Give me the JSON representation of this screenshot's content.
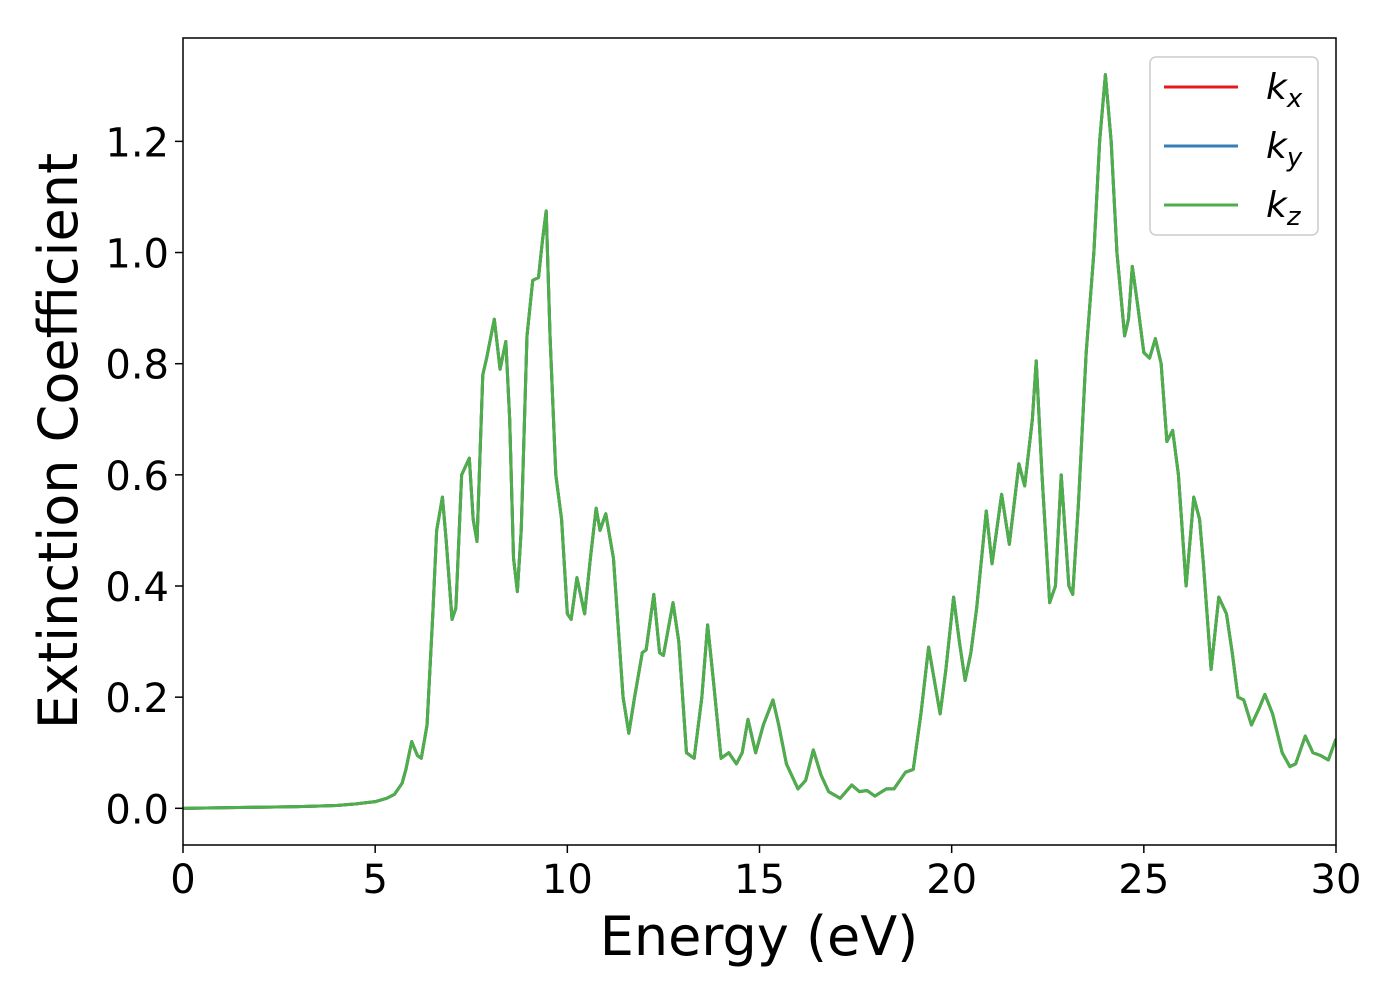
{
  "chart_data": {
    "type": "line",
    "xlabel": "Energy (eV)",
    "ylabel": "Extinction Coefficient",
    "x": [
      0,
      1,
      2,
      3,
      4,
      4.5,
      5,
      5.3,
      5.5,
      5.7,
      5.8,
      5.95,
      6.1,
      6.2,
      6.35,
      6.5,
      6.6,
      6.75,
      6.85,
      7.0,
      7.1,
      7.25,
      7.45,
      7.55,
      7.65,
      7.8,
      7.9,
      8.1,
      8.25,
      8.4,
      8.5,
      8.6,
      8.7,
      8.8,
      8.95,
      9.1,
      9.25,
      9.35,
      9.45,
      9.55,
      9.7,
      9.85,
      10.0,
      10.1,
      10.25,
      10.45,
      10.6,
      10.75,
      10.85,
      11.0,
      11.2,
      11.45,
      11.6,
      11.75,
      11.95,
      12.05,
      12.25,
      12.4,
      12.5,
      12.75,
      12.9,
      13.1,
      13.3,
      13.5,
      13.65,
      13.8,
      14.0,
      14.2,
      14.4,
      14.55,
      14.7,
      14.9,
      15.1,
      15.35,
      15.5,
      15.7,
      16.0,
      16.2,
      16.4,
      16.6,
      16.8,
      17.1,
      17.4,
      17.6,
      17.8,
      18.0,
      18.3,
      18.5,
      18.8,
      19.0,
      19.2,
      19.4,
      19.55,
      19.7,
      19.85,
      20.05,
      20.2,
      20.35,
      20.5,
      20.65,
      20.9,
      21.05,
      21.3,
      21.5,
      21.75,
      21.9,
      22.1,
      22.2,
      22.35,
      22.55,
      22.7,
      22.85,
      23.05,
      23.15,
      23.3,
      23.5,
      23.7,
      23.85,
      24.0,
      24.15,
      24.3,
      24.5,
      24.6,
      24.7,
      24.85,
      25.0,
      25.15,
      25.3,
      25.45,
      25.6,
      25.75,
      25.9,
      26.1,
      26.3,
      26.45,
      26.55,
      26.75,
      26.95,
      27.15,
      27.3,
      27.45,
      27.6,
      27.8,
      28.0,
      28.15,
      28.35,
      28.6,
      28.8,
      28.95,
      29.2,
      29.4,
      29.6,
      29.8,
      30.0
    ],
    "series": [
      {
        "name": "kx",
        "color": "#e41a1c",
        "values": [
          0,
          0.001,
          0.002,
          0.003,
          0.005,
          0.008,
          0.012,
          0.018,
          0.025,
          0.045,
          0.07,
          0.12,
          0.095,
          0.09,
          0.15,
          0.35,
          0.5,
          0.56,
          0.48,
          0.34,
          0.36,
          0.6,
          0.63,
          0.52,
          0.48,
          0.78,
          0.81,
          0.88,
          0.79,
          0.84,
          0.7,
          0.45,
          0.39,
          0.5,
          0.85,
          0.95,
          0.955,
          1.02,
          1.075,
          0.85,
          0.6,
          0.52,
          0.35,
          0.34,
          0.415,
          0.35,
          0.45,
          0.54,
          0.5,
          0.53,
          0.45,
          0.2,
          0.135,
          0.2,
          0.28,
          0.285,
          0.385,
          0.28,
          0.275,
          0.37,
          0.3,
          0.1,
          0.09,
          0.2,
          0.33,
          0.23,
          0.09,
          0.1,
          0.08,
          0.1,
          0.16,
          0.1,
          0.15,
          0.195,
          0.15,
          0.08,
          0.035,
          0.05,
          0.105,
          0.06,
          0.03,
          0.018,
          0.042,
          0.03,
          0.032,
          0.022,
          0.035,
          0.035,
          0.065,
          0.07,
          0.17,
          0.29,
          0.23,
          0.17,
          0.25,
          0.38,
          0.3,
          0.23,
          0.28,
          0.36,
          0.535,
          0.44,
          0.565,
          0.475,
          0.62,
          0.58,
          0.7,
          0.805,
          0.6,
          0.37,
          0.4,
          0.6,
          0.4,
          0.385,
          0.55,
          0.82,
          1.0,
          1.2,
          1.32,
          1.2,
          1.0,
          0.85,
          0.88,
          0.975,
          0.9,
          0.82,
          0.81,
          0.845,
          0.8,
          0.66,
          0.68,
          0.6,
          0.4,
          0.56,
          0.52,
          0.44,
          0.25,
          0.38,
          0.35,
          0.28,
          0.2,
          0.195,
          0.15,
          0.18,
          0.205,
          0.17,
          0.1,
          0.075,
          0.08,
          0.13,
          0.1,
          0.095,
          0.087,
          0.125
        ]
      },
      {
        "name": "ky",
        "color": "#377eb8",
        "values": [
          0,
          0.001,
          0.002,
          0.003,
          0.005,
          0.008,
          0.012,
          0.018,
          0.025,
          0.045,
          0.07,
          0.12,
          0.095,
          0.09,
          0.15,
          0.35,
          0.5,
          0.56,
          0.48,
          0.34,
          0.36,
          0.6,
          0.63,
          0.52,
          0.48,
          0.78,
          0.81,
          0.88,
          0.79,
          0.84,
          0.7,
          0.45,
          0.39,
          0.5,
          0.85,
          0.95,
          0.955,
          1.02,
          1.075,
          0.85,
          0.6,
          0.52,
          0.35,
          0.34,
          0.415,
          0.35,
          0.45,
          0.54,
          0.5,
          0.53,
          0.45,
          0.2,
          0.135,
          0.2,
          0.28,
          0.285,
          0.385,
          0.28,
          0.275,
          0.37,
          0.3,
          0.1,
          0.09,
          0.2,
          0.33,
          0.23,
          0.09,
          0.1,
          0.08,
          0.1,
          0.16,
          0.1,
          0.15,
          0.195,
          0.15,
          0.08,
          0.035,
          0.05,
          0.105,
          0.06,
          0.03,
          0.018,
          0.042,
          0.03,
          0.032,
          0.022,
          0.035,
          0.035,
          0.065,
          0.07,
          0.17,
          0.29,
          0.23,
          0.17,
          0.25,
          0.38,
          0.3,
          0.23,
          0.28,
          0.36,
          0.535,
          0.44,
          0.565,
          0.475,
          0.62,
          0.58,
          0.7,
          0.805,
          0.6,
          0.37,
          0.4,
          0.6,
          0.4,
          0.385,
          0.55,
          0.82,
          1.0,
          1.2,
          1.32,
          1.2,
          1.0,
          0.85,
          0.88,
          0.975,
          0.9,
          0.82,
          0.81,
          0.845,
          0.8,
          0.66,
          0.68,
          0.6,
          0.4,
          0.56,
          0.52,
          0.44,
          0.25,
          0.38,
          0.35,
          0.28,
          0.2,
          0.195,
          0.15,
          0.18,
          0.205,
          0.17,
          0.1,
          0.075,
          0.08,
          0.13,
          0.1,
          0.095,
          0.087,
          0.125
        ]
      },
      {
        "name": "kz",
        "color": "#4daf4a",
        "values": [
          0,
          0.001,
          0.002,
          0.003,
          0.005,
          0.008,
          0.012,
          0.018,
          0.025,
          0.045,
          0.07,
          0.12,
          0.095,
          0.09,
          0.15,
          0.35,
          0.5,
          0.56,
          0.48,
          0.34,
          0.36,
          0.6,
          0.63,
          0.52,
          0.48,
          0.78,
          0.81,
          0.88,
          0.79,
          0.84,
          0.7,
          0.45,
          0.39,
          0.5,
          0.85,
          0.95,
          0.955,
          1.02,
          1.075,
          0.85,
          0.6,
          0.52,
          0.35,
          0.34,
          0.415,
          0.35,
          0.45,
          0.54,
          0.5,
          0.53,
          0.45,
          0.2,
          0.135,
          0.2,
          0.28,
          0.285,
          0.385,
          0.28,
          0.275,
          0.37,
          0.3,
          0.1,
          0.09,
          0.2,
          0.33,
          0.23,
          0.09,
          0.1,
          0.08,
          0.1,
          0.16,
          0.1,
          0.15,
          0.195,
          0.15,
          0.08,
          0.035,
          0.05,
          0.105,
          0.06,
          0.03,
          0.018,
          0.042,
          0.03,
          0.032,
          0.022,
          0.035,
          0.035,
          0.065,
          0.07,
          0.17,
          0.29,
          0.23,
          0.17,
          0.25,
          0.38,
          0.3,
          0.23,
          0.28,
          0.36,
          0.535,
          0.44,
          0.565,
          0.475,
          0.62,
          0.58,
          0.7,
          0.805,
          0.6,
          0.37,
          0.4,
          0.6,
          0.4,
          0.385,
          0.55,
          0.82,
          1.0,
          1.2,
          1.32,
          1.2,
          1.0,
          0.85,
          0.88,
          0.975,
          0.9,
          0.82,
          0.81,
          0.845,
          0.8,
          0.66,
          0.68,
          0.6,
          0.4,
          0.56,
          0.52,
          0.44,
          0.25,
          0.38,
          0.35,
          0.28,
          0.2,
          0.195,
          0.15,
          0.18,
          0.205,
          0.17,
          0.1,
          0.075,
          0.08,
          0.13,
          0.1,
          0.095,
          0.087,
          0.125
        ]
      }
    ],
    "xlim": [
      0,
      30
    ],
    "xticks": [
      0,
      5,
      10,
      15,
      20,
      25,
      30
    ],
    "ylim": [
      -0.066,
      1.386
    ],
    "yticks": [
      {
        "value": 0,
        "label": "0.0"
      },
      0.2,
      0.4,
      0.6,
      0.8,
      {
        "value": 1,
        "label": "1.0"
      },
      1.2
    ],
    "grid": false,
    "legend": "upper right"
  }
}
